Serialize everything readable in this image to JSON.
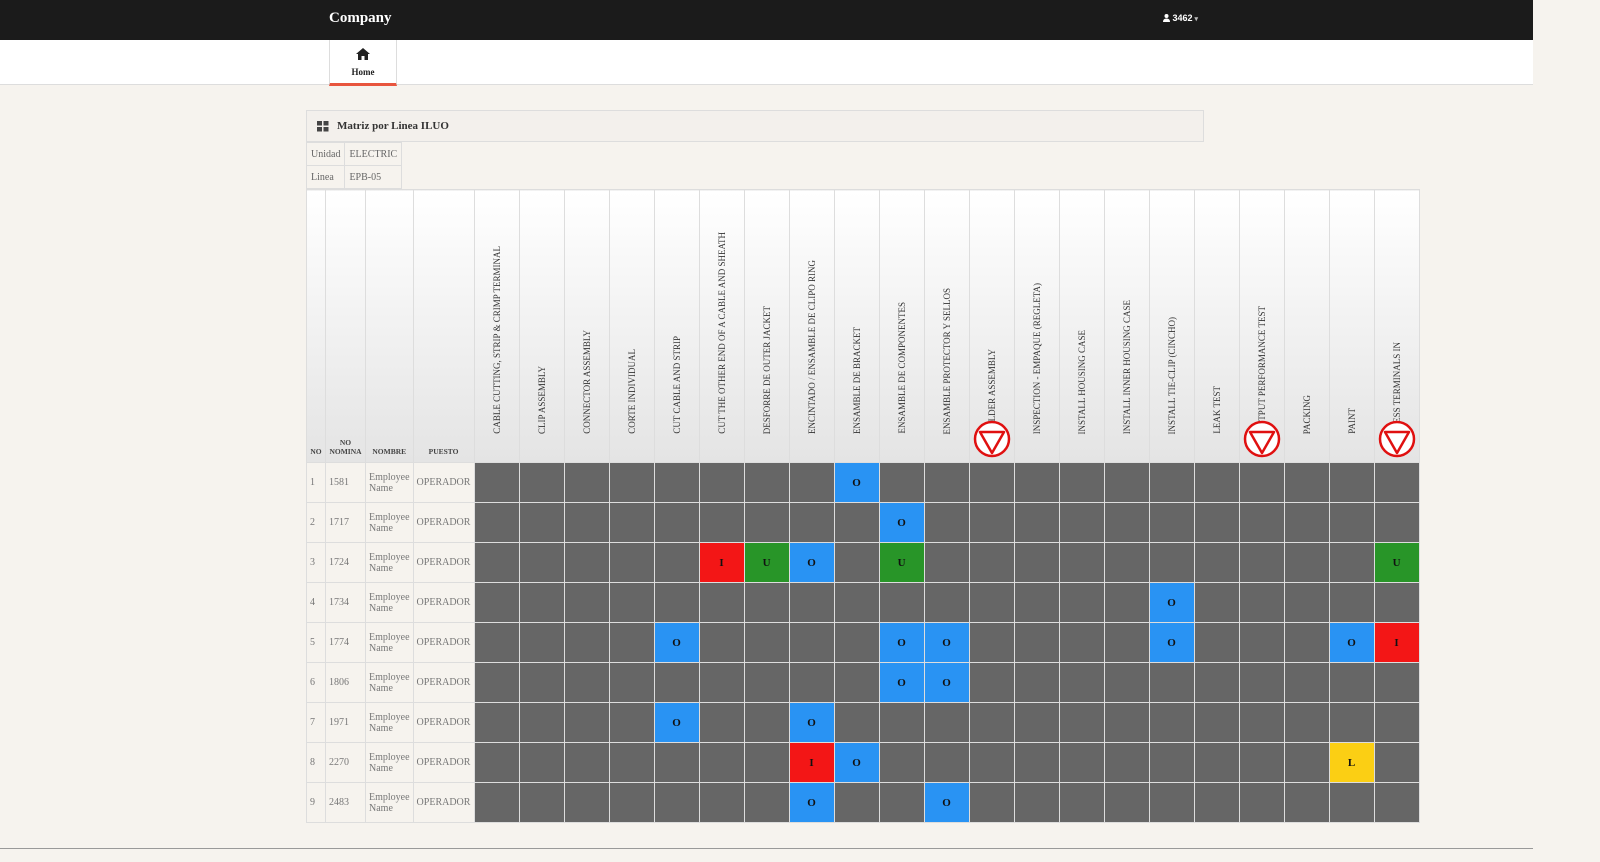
{
  "header": {
    "brand": "Company",
    "user_label": "3462",
    "user_icon": "user-icon"
  },
  "nav": {
    "home_label": "Home",
    "home_icon": "home-icon"
  },
  "panel": {
    "title": "Matriz por Linea ILUO",
    "icon": "grid-icon"
  },
  "info": {
    "unidad_label": "Unidad",
    "unidad_value": "ELECTRIC",
    "linea_label": "Linea",
    "linea_value": "EPB-05"
  },
  "columns": {
    "no": "NO",
    "nomina": "NO NOMINA",
    "nombre": "NOMBRE",
    "puesto": "PUESTO"
  },
  "skills": [
    {
      "label": "CABLE CUTTING, STRIP & CRIMP TERMINAL",
      "stop": false
    },
    {
      "label": "CLIP ASSEMBLY",
      "stop": false
    },
    {
      "label": "CONNECTOR ASSEMBLY",
      "stop": false
    },
    {
      "label": "CORTE INDIVIDUAL",
      "stop": false
    },
    {
      "label": "CUT CABLE AND STRIP",
      "stop": false
    },
    {
      "label": "CUT THE OTHER END OF A CABLE AND SHEATH",
      "stop": false
    },
    {
      "label": "DESFORRE DE OUTER JACKET",
      "stop": false
    },
    {
      "label": "ENCINTADO / ENSAMBLE DE CLIPO RING",
      "stop": false
    },
    {
      "label": "ENSAMBLE DE BRACKET",
      "stop": false
    },
    {
      "label": "ENSAMBLE DE COMPONENTES",
      "stop": false
    },
    {
      "label": "ENSAMBLE PROTECTOR Y SELLOS",
      "stop": false
    },
    {
      "label": "HOLDER ASSEMBLY",
      "stop": true
    },
    {
      "label": "INSPECTION - EMPAQUE (REGLETA)",
      "stop": false
    },
    {
      "label": "INSTALL HOUSING CASE",
      "stop": false
    },
    {
      "label": "INSTALL INNER HOUSING CASE",
      "stop": false
    },
    {
      "label": "INSTALL TIE-CLIP (CINCHO)",
      "stop": false
    },
    {
      "label": "LEAK TEST",
      "stop": false
    },
    {
      "label": "OUTPUT PERFORMANCE TEST",
      "stop": true
    },
    {
      "label": "PACKING",
      "stop": false
    },
    {
      "label": "PAINT",
      "stop": false
    },
    {
      "label": "PRESS TERMINALS IN",
      "stop": true
    }
  ],
  "level_colors": {
    "O": "#2993f3",
    "I": "#f31616",
    "U": "#289528",
    "L": "#fbcf14",
    "empty": "#666666"
  },
  "rows": [
    {
      "no": "1",
      "nomina": "1581",
      "nombre": "Employee Name",
      "puesto": "OPERADOR",
      "levels": [
        "",
        "",
        "",
        "",
        "",
        "",
        "",
        "",
        "O",
        "",
        "",
        "",
        "",
        "",
        "",
        "",
        "",
        "",
        "",
        "",
        ""
      ]
    },
    {
      "no": "2",
      "nomina": "1717",
      "nombre": "Employee Name",
      "puesto": "OPERADOR",
      "levels": [
        "",
        "",
        "",
        "",
        "",
        "",
        "",
        "",
        "",
        "O",
        "",
        "",
        "",
        "",
        "",
        "",
        "",
        "",
        "",
        "",
        ""
      ]
    },
    {
      "no": "3",
      "nomina": "1724",
      "nombre": "Employee Name",
      "puesto": "OPERADOR",
      "levels": [
        "",
        "",
        "",
        "",
        "",
        "I",
        "U",
        "O",
        "",
        "U",
        "",
        "",
        "",
        "",
        "",
        "",
        "",
        "",
        "",
        "",
        "U"
      ]
    },
    {
      "no": "4",
      "nomina": "1734",
      "nombre": "Employee Name",
      "puesto": "OPERADOR",
      "levels": [
        "",
        "",
        "",
        "",
        "",
        "",
        "",
        "",
        "",
        "",
        "",
        "",
        "",
        "",
        "",
        "O",
        "",
        "",
        "",
        "",
        ""
      ]
    },
    {
      "no": "5",
      "nomina": "1774",
      "nombre": "Employee Name",
      "puesto": "OPERADOR",
      "levels": [
        "",
        "",
        "",
        "",
        "O",
        "",
        "",
        "",
        "",
        "O",
        "O",
        "",
        "",
        "",
        "",
        "O",
        "",
        "",
        "",
        "O",
        "I"
      ]
    },
    {
      "no": "6",
      "nomina": "1806",
      "nombre": "Employee Name",
      "puesto": "OPERADOR",
      "levels": [
        "",
        "",
        "",
        "",
        "",
        "",
        "",
        "",
        "",
        "O",
        "O",
        "",
        "",
        "",
        "",
        "",
        "",
        "",
        "",
        "",
        ""
      ]
    },
    {
      "no": "7",
      "nomina": "1971",
      "nombre": "Employee Name",
      "puesto": "OPERADOR",
      "levels": [
        "",
        "",
        "",
        "",
        "O",
        "",
        "",
        "O",
        "",
        "",
        "",
        "",
        "",
        "",
        "",
        "",
        "",
        "",
        "",
        "",
        ""
      ]
    },
    {
      "no": "8",
      "nomina": "2270",
      "nombre": "Employee Name",
      "puesto": "OPERADOR",
      "levels": [
        "",
        "",
        "",
        "",
        "",
        "",
        "",
        "I",
        "O",
        "",
        "",
        "",
        "",
        "",
        "",
        "",
        "",
        "",
        "",
        "L",
        ""
      ]
    },
    {
      "no": "9",
      "nomina": "2483",
      "nombre": "Employee Name",
      "puesto": "OPERADOR",
      "levels": [
        "",
        "",
        "",
        "",
        "",
        "",
        "",
        "O",
        "",
        "",
        "O",
        "",
        "",
        "",
        "",
        "",
        "",
        "",
        "",
        "",
        ""
      ]
    }
  ]
}
